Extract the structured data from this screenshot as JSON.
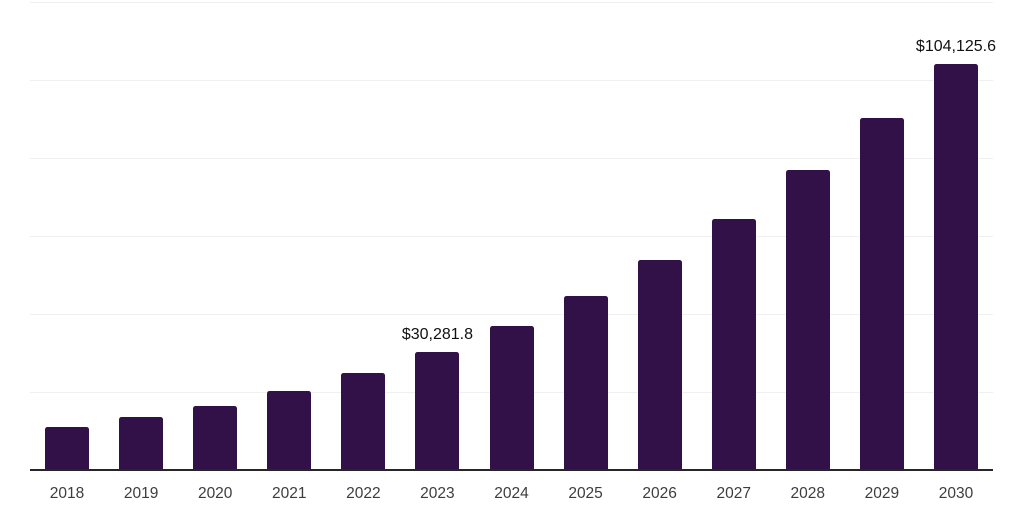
{
  "chart_data": {
    "type": "bar",
    "categories": [
      "2018",
      "2019",
      "2020",
      "2021",
      "2022",
      "2023",
      "2024",
      "2025",
      "2026",
      "2027",
      "2028",
      "2029",
      "2030"
    ],
    "values": [
      11000,
      13600,
      16400,
      20300,
      24900,
      30281.8,
      36900,
      44600,
      53900,
      64400,
      77000,
      90300,
      104125.6
    ],
    "data_labels": [
      {
        "category": "2023",
        "text": "$30,281.8"
      },
      {
        "category": "2030",
        "text": "$104,125.6"
      }
    ],
    "xlabel": "",
    "ylabel": "",
    "title": "",
    "ylim": [
      0,
      120000
    ],
    "gridline_step": 20000,
    "grid": true,
    "legend": false,
    "colors": {
      "bar": "#321148",
      "axis": "#262626",
      "gridline": "#f0f0f0",
      "tick_label": "#3d3d3d",
      "data_label": "#111111",
      "background": "#ffffff"
    }
  }
}
